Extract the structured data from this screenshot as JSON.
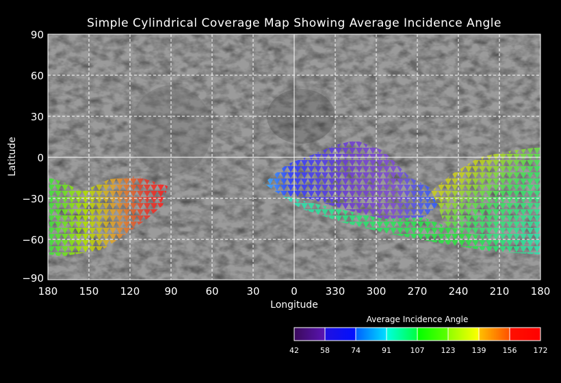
{
  "title": "Simple Cylindrical Coverage Map Showing Average Incidence Angle",
  "xlabel": "Longitude",
  "ylabel": "Latitude",
  "lat_ticks": [
    "90",
    "60",
    "30",
    "0",
    "−30",
    "−60",
    "−90"
  ],
  "lon_ticks": [
    "180",
    "150",
    "120",
    "90",
    "60",
    "30",
    "0",
    "330",
    "300",
    "270",
    "240",
    "210",
    "180"
  ],
  "colorbar": {
    "title": "Average Incidence Angle",
    "ticks": [
      "42",
      "58",
      "74",
      "91",
      "107",
      "123",
      "139",
      "156",
      "172"
    ],
    "colors": [
      "#3a0a5a",
      "#5a14b4",
      "#0010ff",
      "#0090ff",
      "#00ffe0",
      "#00ff40",
      "#30ff00",
      "#a0ff00",
      "#ffff00",
      "#ffa000",
      "#ff4000",
      "#ff0000"
    ]
  }
}
